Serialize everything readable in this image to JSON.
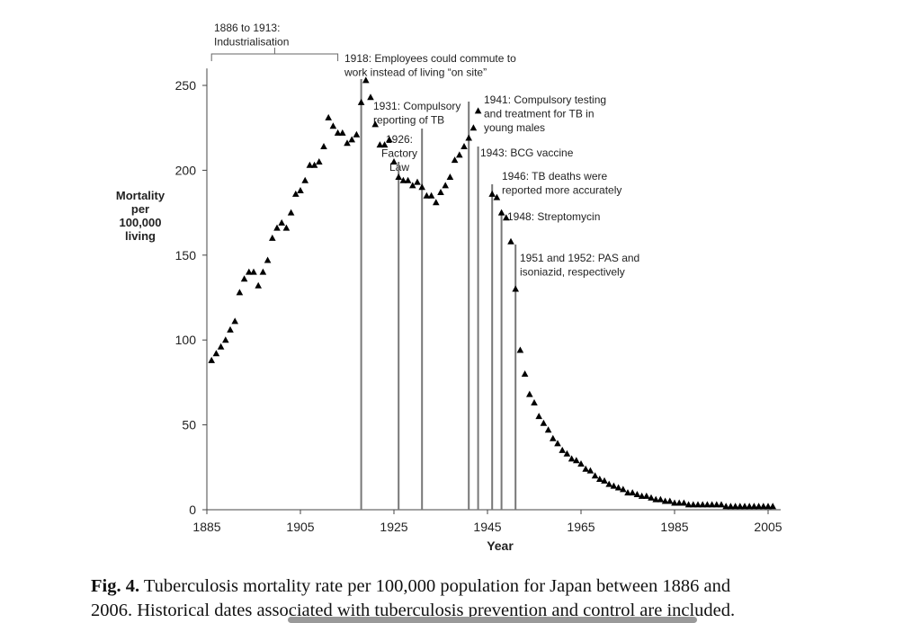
{
  "chart_data": {
    "type": "scatter",
    "y_label": [
      "Mortality",
      "per",
      "100,000",
      "living"
    ],
    "x_label": "Year",
    "color": "#000000",
    "x": [
      1886,
      1887,
      1888,
      1889,
      1890,
      1891,
      1892,
      1893,
      1894,
      1895,
      1896,
      1897,
      1898,
      1899,
      1900,
      1901,
      1902,
      1903,
      1904,
      1905,
      1906,
      1907,
      1908,
      1909,
      1910,
      1911,
      1912,
      1913,
      1914,
      1915,
      1916,
      1917,
      1918,
      1919,
      1920,
      1921,
      1922,
      1923,
      1924,
      1925,
      1926,
      1927,
      1928,
      1929,
      1930,
      1931,
      1932,
      1933,
      1934,
      1935,
      1936,
      1937,
      1938,
      1939,
      1940,
      1941,
      1942,
      1943,
      1946,
      1947,
      1948,
      1949,
      1950,
      1951,
      1952,
      1953,
      1954,
      1955,
      1956,
      1957,
      1958,
      1959,
      1960,
      1961,
      1962,
      1963,
      1964,
      1965,
      1966,
      1967,
      1968,
      1969,
      1970,
      1971,
      1972,
      1973,
      1974,
      1975,
      1976,
      1977,
      1978,
      1979,
      1980,
      1981,
      1982,
      1983,
      1984,
      1985,
      1986,
      1987,
      1988,
      1989,
      1990,
      1991,
      1992,
      1993,
      1994,
      1995,
      1996,
      1997,
      1998,
      1999,
      2000,
      2001,
      2002,
      2003,
      2004,
      2005,
      2006
    ],
    "values": [
      88,
      92,
      96,
      100,
      106,
      111,
      128,
      136,
      140,
      140,
      132,
      140,
      147,
      160,
      166,
      169,
      166,
      175,
      186,
      188,
      194,
      203,
      203,
      205,
      214,
      231,
      226,
      222,
      222,
      216,
      218,
      221,
      240,
      253,
      243,
      227,
      215,
      215,
      218,
      205,
      196,
      194,
      194,
      191,
      193,
      190,
      185,
      185,
      181,
      187,
      191,
      196,
      206,
      209,
      214,
      219,
      225,
      235,
      186,
      184,
      175,
      172,
      158,
      130,
      94,
      80,
      68,
      63,
      55,
      51,
      47,
      42,
      39,
      35,
      33,
      30,
      29,
      27,
      24,
      23,
      20,
      18,
      17,
      15,
      14,
      13,
      12,
      10,
      10,
      9,
      8,
      8,
      7,
      6,
      6,
      5,
      5,
      4,
      4,
      4,
      3,
      3,
      3,
      3,
      3,
      3,
      3,
      3,
      2,
      2,
      2,
      2,
      2,
      2,
      2,
      2,
      2,
      2,
      2
    ],
    "xlim": [
      1885,
      2010
    ],
    "ylim": [
      0,
      260
    ],
    "xticks": [
      1885,
      1905,
      1925,
      1945,
      1965,
      1985,
      2005
    ],
    "yticks": [
      0,
      50,
      100,
      150,
      200,
      250
    ],
    "annotations": [
      {
        "lines": [
          "1886 to 1913:",
          "Industrialisation"
        ],
        "range": [
          1886,
          1913
        ]
      },
      {
        "lines": [
          "1918: Employees could commute to",
          "work instead of living “on site”"
        ],
        "year": 1918
      },
      {
        "lines": [
          "1931: Compulsory",
          "reporting of TB"
        ],
        "year": 1931
      },
      {
        "lines": [
          "1926:",
          "Factory",
          "Law"
        ],
        "year": 1926
      },
      {
        "lines": [
          "1941: Compulsory testing",
          "and treatment for TB in",
          "young males"
        ],
        "year": 1941
      },
      {
        "lines": [
          "1943: BCG vaccine"
        ],
        "year": 1943
      },
      {
        "lines": [
          "1946: TB deaths were",
          "reported more accurately"
        ],
        "year": 1946
      },
      {
        "lines": [
          "1948: Streptomycin"
        ],
        "year": 1948
      },
      {
        "lines": [
          "1951 and 1952: PAS and",
          "isoniazid, respectively"
        ],
        "year": 1951
      }
    ]
  },
  "caption": {
    "label": "Fig. 4.",
    "lines": [
      "Tuberculosis mortality rate per 100,000 population for Japan between 1886 and",
      "2006. Historical dates associated with tuberculosis prevention and control are included."
    ]
  }
}
